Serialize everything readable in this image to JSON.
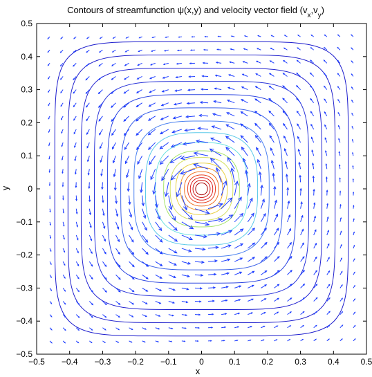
{
  "chart_data": {
    "type": "contour",
    "title": "Contours of streamfunction ψ(x,y) and velocity vector field (v",
    "title_sub1": "x",
    "title_mid": ",v",
    "title_sub2": "y",
    "title_end": ")",
    "xlabel": "x",
    "ylabel": "y",
    "xlim": [
      -0.5,
      0.5
    ],
    "ylim": [
      -0.5,
      0.5
    ],
    "xticks": [
      "−0.5",
      "−0.4",
      "−0.3",
      "−0.2",
      "−0.1",
      "0",
      "0.1",
      "0.2",
      "0.3",
      "0.4",
      "0.5"
    ],
    "yticks": [
      "0.5",
      "0.4",
      "0.3",
      "0.2",
      "0.1",
      "0",
      "−0.1",
      "−0.2",
      "−0.3",
      "−0.4",
      "−0.5"
    ],
    "grid": false,
    "contour_levels": [
      {
        "half_width": 0.445,
        "color": "#1a1acc"
      },
      {
        "half_width": 0.405,
        "color": "#2020cc"
      },
      {
        "half_width": 0.365,
        "color": "#2424d0"
      },
      {
        "half_width": 0.325,
        "color": "#2833d8"
      },
      {
        "half_width": 0.285,
        "color": "#2c45e0"
      },
      {
        "half_width": 0.245,
        "color": "#3a60e8"
      },
      {
        "half_width": 0.205,
        "color": "#4a80f0"
      },
      {
        "half_width": 0.17,
        "color": "#58c8e8"
      },
      {
        "half_width": 0.14,
        "color": "#6ae0e0"
      },
      {
        "half_width": 0.115,
        "color": "#a6e46a"
      },
      {
        "half_width": 0.095,
        "color": "#d4e060"
      },
      {
        "half_width": 0.078,
        "color": "#e8d040"
      },
      {
        "half_width": 0.064,
        "color": "#f0a030"
      },
      {
        "half_width": 0.052,
        "color": "#f07020"
      },
      {
        "half_width": 0.042,
        "color": "#e84020"
      },
      {
        "half_width": 0.034,
        "color": "#dd2222"
      },
      {
        "half_width": 0.026,
        "color": "#cc1111"
      },
      {
        "half_width": 0.018,
        "color": "#aa0000"
      }
    ],
    "vector_field": {
      "grid_min": -0.46,
      "grid_max": 0.46,
      "grid_step": 0.04,
      "rotation": "counter-clockwise",
      "color": "#1f3fff"
    }
  }
}
